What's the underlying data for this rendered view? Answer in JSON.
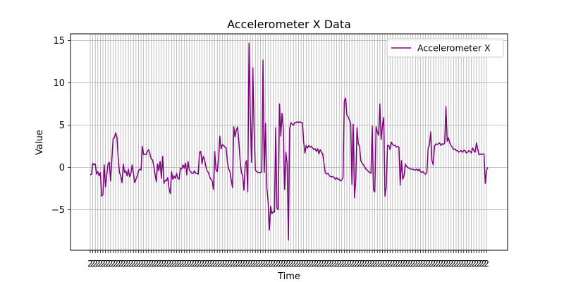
{
  "chart_data": {
    "type": "line",
    "title": "Accelerometer X Data",
    "xlabel": "Time",
    "ylabel": "Value",
    "ylim": [
      -9.8,
      15.8
    ],
    "yticks": [
      -5,
      0,
      5,
      10,
      15
    ],
    "ytick_labels": [
      "−5",
      "0",
      "5",
      "10",
      "15"
    ],
    "grid": true,
    "legend": "top-right",
    "xtick_label_fragment": "2",
    "colors": {
      "line": "#800080",
      "grid": "#b0b0b0"
    },
    "series": [
      {
        "name": "Accelerometer X",
        "values": [
          -0.9,
          -0.8,
          0.5,
          0.3,
          0.4,
          -0.8,
          -0.5,
          -1.0,
          -0.6,
          -3.4,
          -3.2,
          0.3,
          -2.3,
          -0.9,
          0.4,
          0.6,
          -1.6,
          0.9,
          3.4,
          3.5,
          4.1,
          3.6,
          1.2,
          -0.6,
          -1.0,
          -1.8,
          0.4,
          -0.6,
          -0.4,
          -1.0,
          -0.2,
          -1.1,
          -0.7,
          0.3,
          -0.7,
          -1.8,
          -1.4,
          -1.0,
          -0.4,
          -0.2,
          -0.3,
          2.5,
          1.5,
          1.6,
          1.5,
          1.9,
          2.1,
          1.6,
          1.0,
          0.9,
          0.2,
          -0.8,
          -1.7,
          0.4,
          -0.4,
          0.7,
          -1.3,
          1.3,
          -1.9,
          -1.5,
          -1.6,
          -1.2,
          -2.5,
          -3.1,
          -0.5,
          -1.4,
          -1.0,
          -1.3,
          -0.7,
          -1.3,
          -1.4,
          -0.1,
          -0.2,
          0.3,
          -0.1,
          0.5,
          -0.9,
          0.7,
          -0.3,
          -0.5,
          -0.7,
          -0.7,
          -0.4,
          -0.7,
          -0.7,
          -0.8,
          1.8,
          1.9,
          0.4,
          1.3,
          0.9,
          0.1,
          -0.4,
          -0.6,
          -1.1,
          -1.4,
          -1.6,
          -2.6,
          1.9,
          -0.3,
          -0.5,
          1.1,
          3.7,
          2.2,
          2.7,
          2.6,
          2.4,
          2.3,
          0.6,
          -0.2,
          -0.5,
          -1.5,
          -2.4,
          4.8,
          3.6,
          4.4,
          4.8,
          3.0,
          0.8,
          -0.6,
          -1.0,
          -2.7,
          0.4,
          0.8,
          -2.9,
          14.7,
          6.5,
          0.6,
          11.8,
          4.3,
          -0.3,
          -0.5,
          -0.6,
          -0.6,
          -0.6,
          -0.5,
          12.7,
          -0.6,
          5.2,
          -2.4,
          -4.0,
          -7.4,
          -4.6,
          -5.5,
          -5.2,
          -5.3,
          4.7,
          -4.8,
          -5.0,
          7.5,
          3.7,
          6.4,
          4.6,
          -2.6,
          1.8,
          0.4,
          -8.6,
          4.6,
          5.3,
          5.1,
          5.0,
          5.3,
          5.3,
          5.4,
          5.3,
          5.4,
          5.3,
          5.3,
          3.0,
          1.7,
          2.6,
          2.3,
          2.6,
          2.4,
          2.5,
          2.3,
          2.1,
          2.2,
          1.9,
          2.2,
          1.6,
          2.1,
          1.8,
          1.6,
          0.5,
          -0.6,
          -0.8,
          -0.7,
          -0.9,
          -1.1,
          -1.1,
          -1.1,
          -1.2,
          -1.4,
          -1.2,
          -1.4,
          -1.4,
          -1.6,
          -1.5,
          -1.2,
          7.8,
          8.2,
          6.2,
          6.0,
          5.6,
          5.2,
          -2.0,
          5.1,
          -3.6,
          -1.5,
          4.7,
          2.8,
          2.5,
          0.8,
          0.5,
          0.3,
          0.1,
          -0.2,
          -0.3,
          -0.5,
          -0.6,
          -0.7,
          4.9,
          -2.7,
          -2.9,
          4.8,
          4.2,
          3.8,
          7.5,
          3.3,
          4.9,
          5.9,
          -3.4,
          -2.3,
          2.6,
          2.6,
          2.1,
          3.0,
          2.7,
          2.6,
          2.6,
          2.4,
          2.5,
          2.4,
          -2.1,
          0.8,
          -1.4,
          -1.0,
          0.4,
          0.1,
          0.0,
          -0.1,
          -0.2,
          -0.2,
          -0.2,
          -0.3,
          -0.3,
          -0.2,
          -0.4,
          -0.2,
          -0.5,
          -0.6,
          -0.5,
          -0.7,
          -0.8,
          -0.6,
          2.3,
          2.6,
          4.2,
          0.8,
          0.3,
          2.5,
          2.8,
          2.7,
          2.8,
          2.9,
          2.6,
          2.8,
          2.7,
          2.9,
          7.2,
          3.1,
          3.5,
          2.9,
          2.6,
          2.4,
          2.1,
          2.2,
          2.0,
          2.0,
          1.8,
          1.9,
          2.0,
          1.8,
          2.0,
          2.0,
          1.7,
          1.8,
          2.0,
          1.9,
          1.7,
          2.3,
          2.0,
          1.8,
          2.9,
          2.2,
          1.5,
          1.6,
          1.5,
          1.6,
          1.6,
          -1.9,
          -0.3,
          0.0
        ]
      }
    ]
  }
}
